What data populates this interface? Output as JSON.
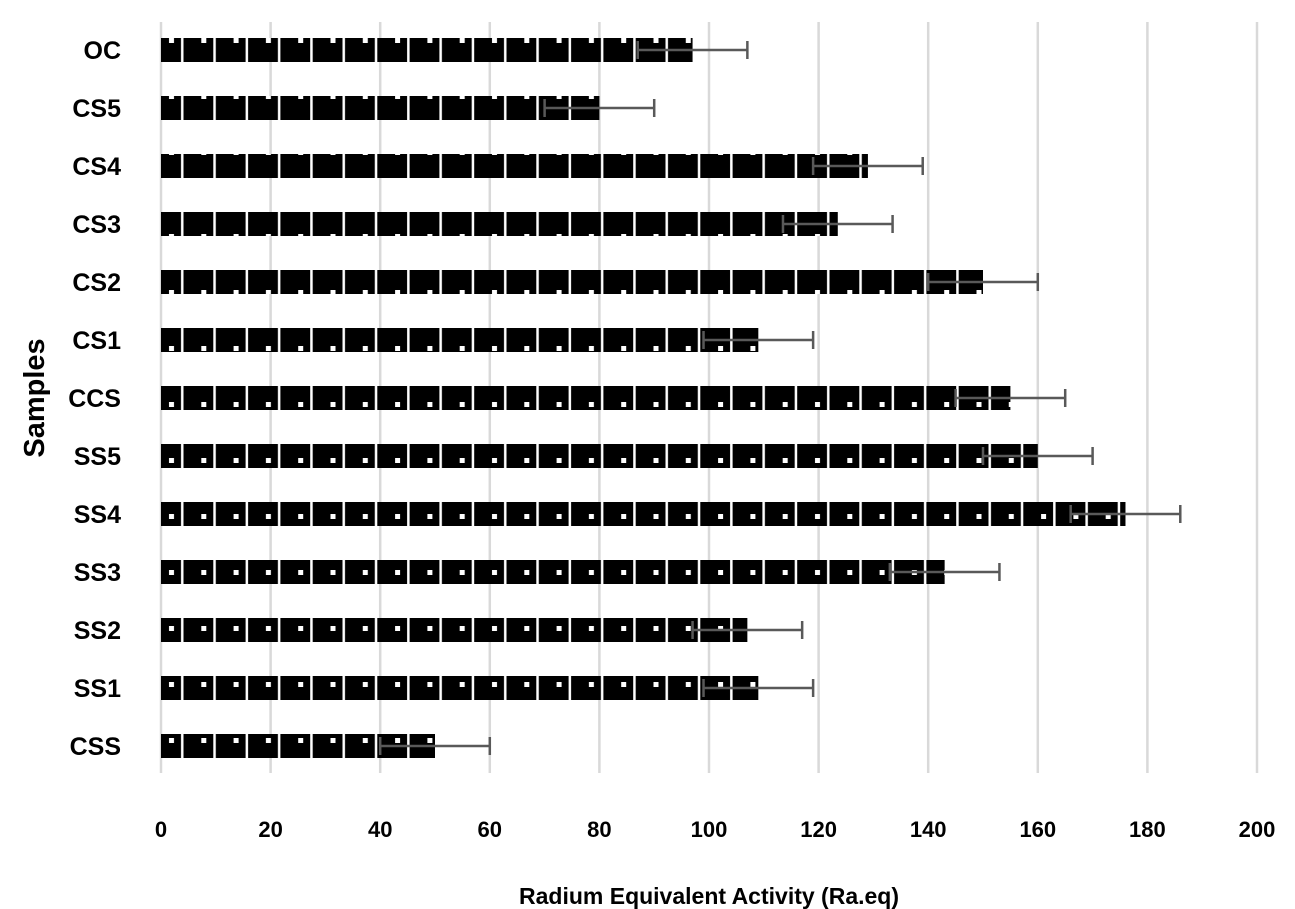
{
  "chart_data": {
    "type": "bar",
    "orientation": "horizontal",
    "categories": [
      "OC",
      "CS5",
      "CS4",
      "CS3",
      "CS2",
      "CS1",
      "CCS",
      "SS5",
      "SS4",
      "SS3",
      "SS2",
      "SS1",
      "CSS"
    ],
    "values": [
      97,
      80,
      129,
      123.5,
      150,
      109,
      155,
      160,
      176,
      143,
      107,
      109,
      50
    ],
    "error": [
      10,
      10,
      10,
      10,
      10,
      10,
      10,
      10,
      10,
      10,
      10,
      10,
      10
    ],
    "xlim": [
      0,
      200
    ],
    "xticks": [
      0,
      20,
      40,
      60,
      80,
      100,
      120,
      140,
      160,
      180,
      200
    ],
    "xlabel": "Radium Equivalent Activity (Ra.eq)",
    "ylabel": "Samples",
    "title": "",
    "grid": "vertical",
    "legend": "none",
    "colors": {
      "bar": "#000000",
      "bar_pattern_dot": "#ffffff",
      "error_bar": "#595959",
      "grid": "#d9d9d9"
    }
  }
}
